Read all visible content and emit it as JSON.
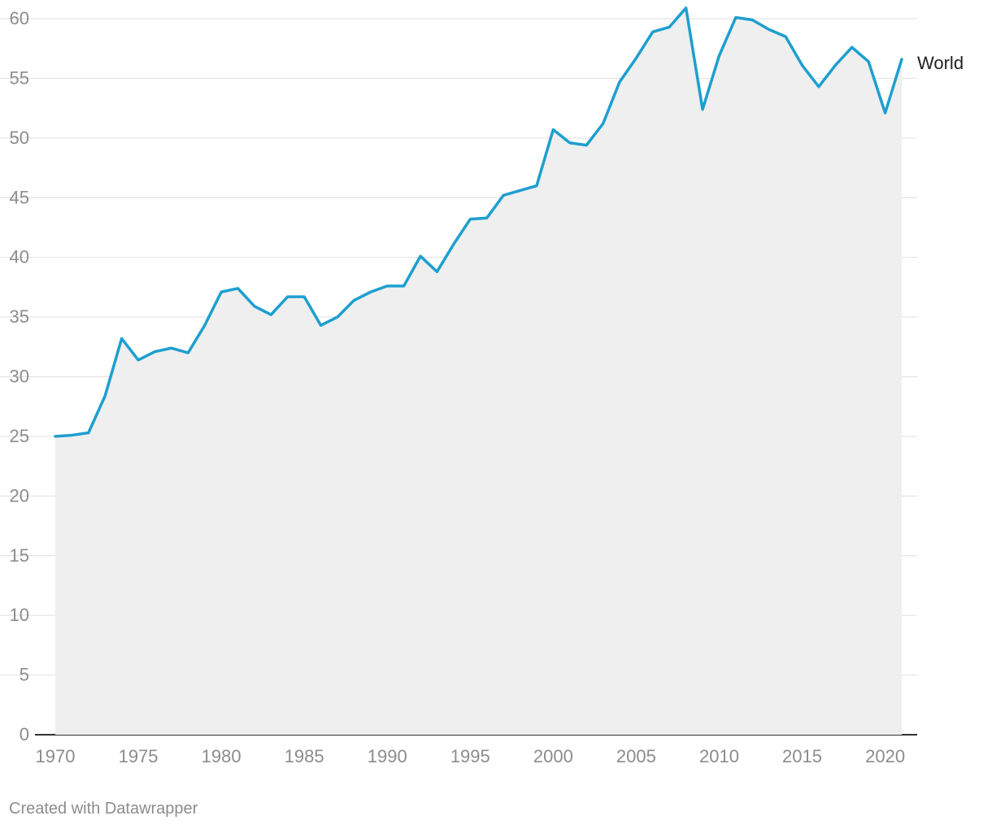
{
  "chart_data": {
    "type": "area",
    "title": "",
    "xlabel": "",
    "ylabel": "",
    "x": [
      1970,
      1971,
      1972,
      1973,
      1974,
      1975,
      1976,
      1977,
      1978,
      1979,
      1980,
      1981,
      1982,
      1983,
      1984,
      1985,
      1986,
      1987,
      1988,
      1989,
      1990,
      1991,
      1992,
      1993,
      1994,
      1995,
      1996,
      1997,
      1998,
      1999,
      2000,
      2001,
      2002,
      2003,
      2004,
      2005,
      2006,
      2007,
      2008,
      2009,
      2010,
      2011,
      2012,
      2013,
      2014,
      2015,
      2016,
      2017,
      2018,
      2019,
      2020,
      2021
    ],
    "series": [
      {
        "name": "World",
        "color": "#1d9fcf",
        "values": [
          25.0,
          25.1,
          25.3,
          28.4,
          33.2,
          31.4,
          32.1,
          32.4,
          32.0,
          34.3,
          37.1,
          37.4,
          35.9,
          35.2,
          36.7,
          36.7,
          34.3,
          35.0,
          36.4,
          37.1,
          37.6,
          37.6,
          40.1,
          38.8,
          41.1,
          43.2,
          43.3,
          45.2,
          45.6,
          46.0,
          50.7,
          49.6,
          49.4,
          51.2,
          54.7,
          56.7,
          58.9,
          59.3,
          60.9,
          52.4,
          56.9,
          60.1,
          59.9,
          59.1,
          58.5,
          56.1,
          54.3,
          56.1,
          57.6,
          56.4,
          52.1,
          56.6
        ]
      }
    ],
    "ylim": [
      0,
      60
    ],
    "xlim": [
      1970,
      2021
    ],
    "yticks": [
      "0",
      "5",
      "10",
      "15",
      "20",
      "25",
      "30",
      "35",
      "40",
      "45",
      "50",
      "55",
      "60"
    ],
    "xticks": [
      "1970",
      "1975",
      "1980",
      "1985",
      "1990",
      "1995",
      "2000",
      "2005",
      "2010",
      "2015",
      "2020"
    ],
    "grid": true,
    "area_fill": "#efefef",
    "legend": "label at line end (right)"
  },
  "footer": {
    "text": "Created with Datawrapper"
  }
}
